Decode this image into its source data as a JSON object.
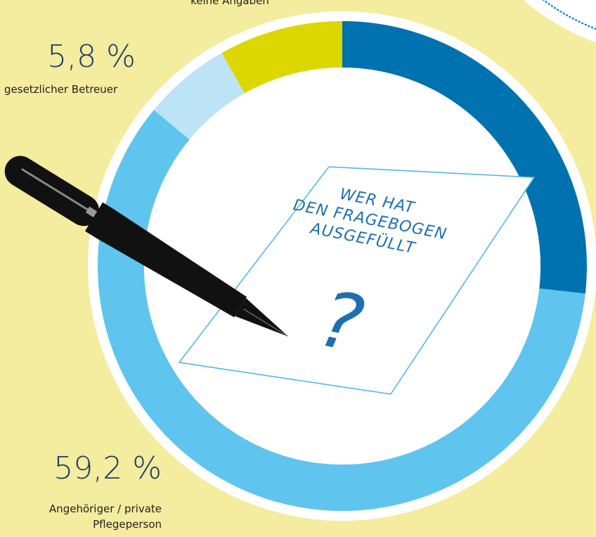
{
  "chart_data": {
    "type": "donut",
    "title": "WER HAT DEN FRAGEBOGEN AUSGEFÜLLT",
    "symbol": "?",
    "categories": [
      null,
      "Angehöriger / private Pflegeperson",
      "gesetzlicher Betreuer",
      "keine Angaben"
    ],
    "values": [
      26.8,
      59.2,
      5.8,
      8.2
    ],
    "value_labels": [
      null,
      "59,2 %",
      "5,8 %",
      null
    ],
    "colors": [
      "#0072b0",
      "#5fc5ee",
      "#bde3f6",
      "#dcd700"
    ]
  }
}
